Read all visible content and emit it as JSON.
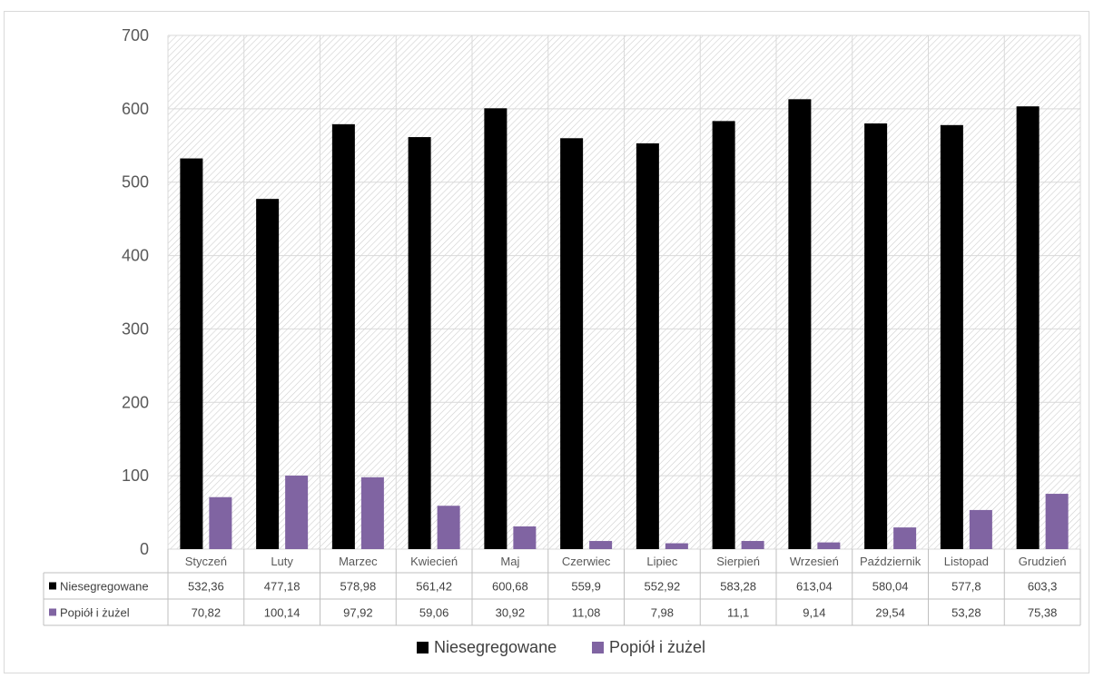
{
  "chart_data": {
    "type": "bar",
    "categories": [
      "Styczeń",
      "Luty",
      "Marzec",
      "Kwiecień",
      "Maj",
      "Czerwiec",
      "Lipiec",
      "Sierpień",
      "Wrzesień",
      "Październik",
      "Listopad",
      "Grudzień"
    ],
    "series": [
      {
        "name": "Niesegregowane",
        "color": "#000000",
        "values": [
          532.36,
          477.18,
          578.98,
          561.42,
          600.68,
          559.9,
          552.92,
          583.28,
          613.04,
          580.04,
          577.8,
          603.3
        ],
        "labels": [
          "532,36",
          "477,18",
          "578,98",
          "561,42",
          "600,68",
          "559,9",
          "552,92",
          "583,28",
          "613,04",
          "580,04",
          "577,8",
          "603,3"
        ]
      },
      {
        "name": "Popiół i żużel",
        "color": "#8064a2",
        "values": [
          70.82,
          100.14,
          97.92,
          59.06,
          30.92,
          11.08,
          7.98,
          11.1,
          9.14,
          29.54,
          53.28,
          75.38
        ],
        "labels": [
          "70,82",
          "100,14",
          "97,92",
          "59,06",
          "30,92",
          "11,08",
          "7,98",
          "11,1",
          "9,14",
          "29,54",
          "53,28",
          "75,38"
        ]
      }
    ],
    "y_ticks": [
      0,
      100,
      200,
      300,
      400,
      500,
      600,
      700
    ],
    "ylim": [
      0,
      700
    ],
    "grid": true,
    "data_table": true,
    "legend_position": "bottom-center"
  }
}
